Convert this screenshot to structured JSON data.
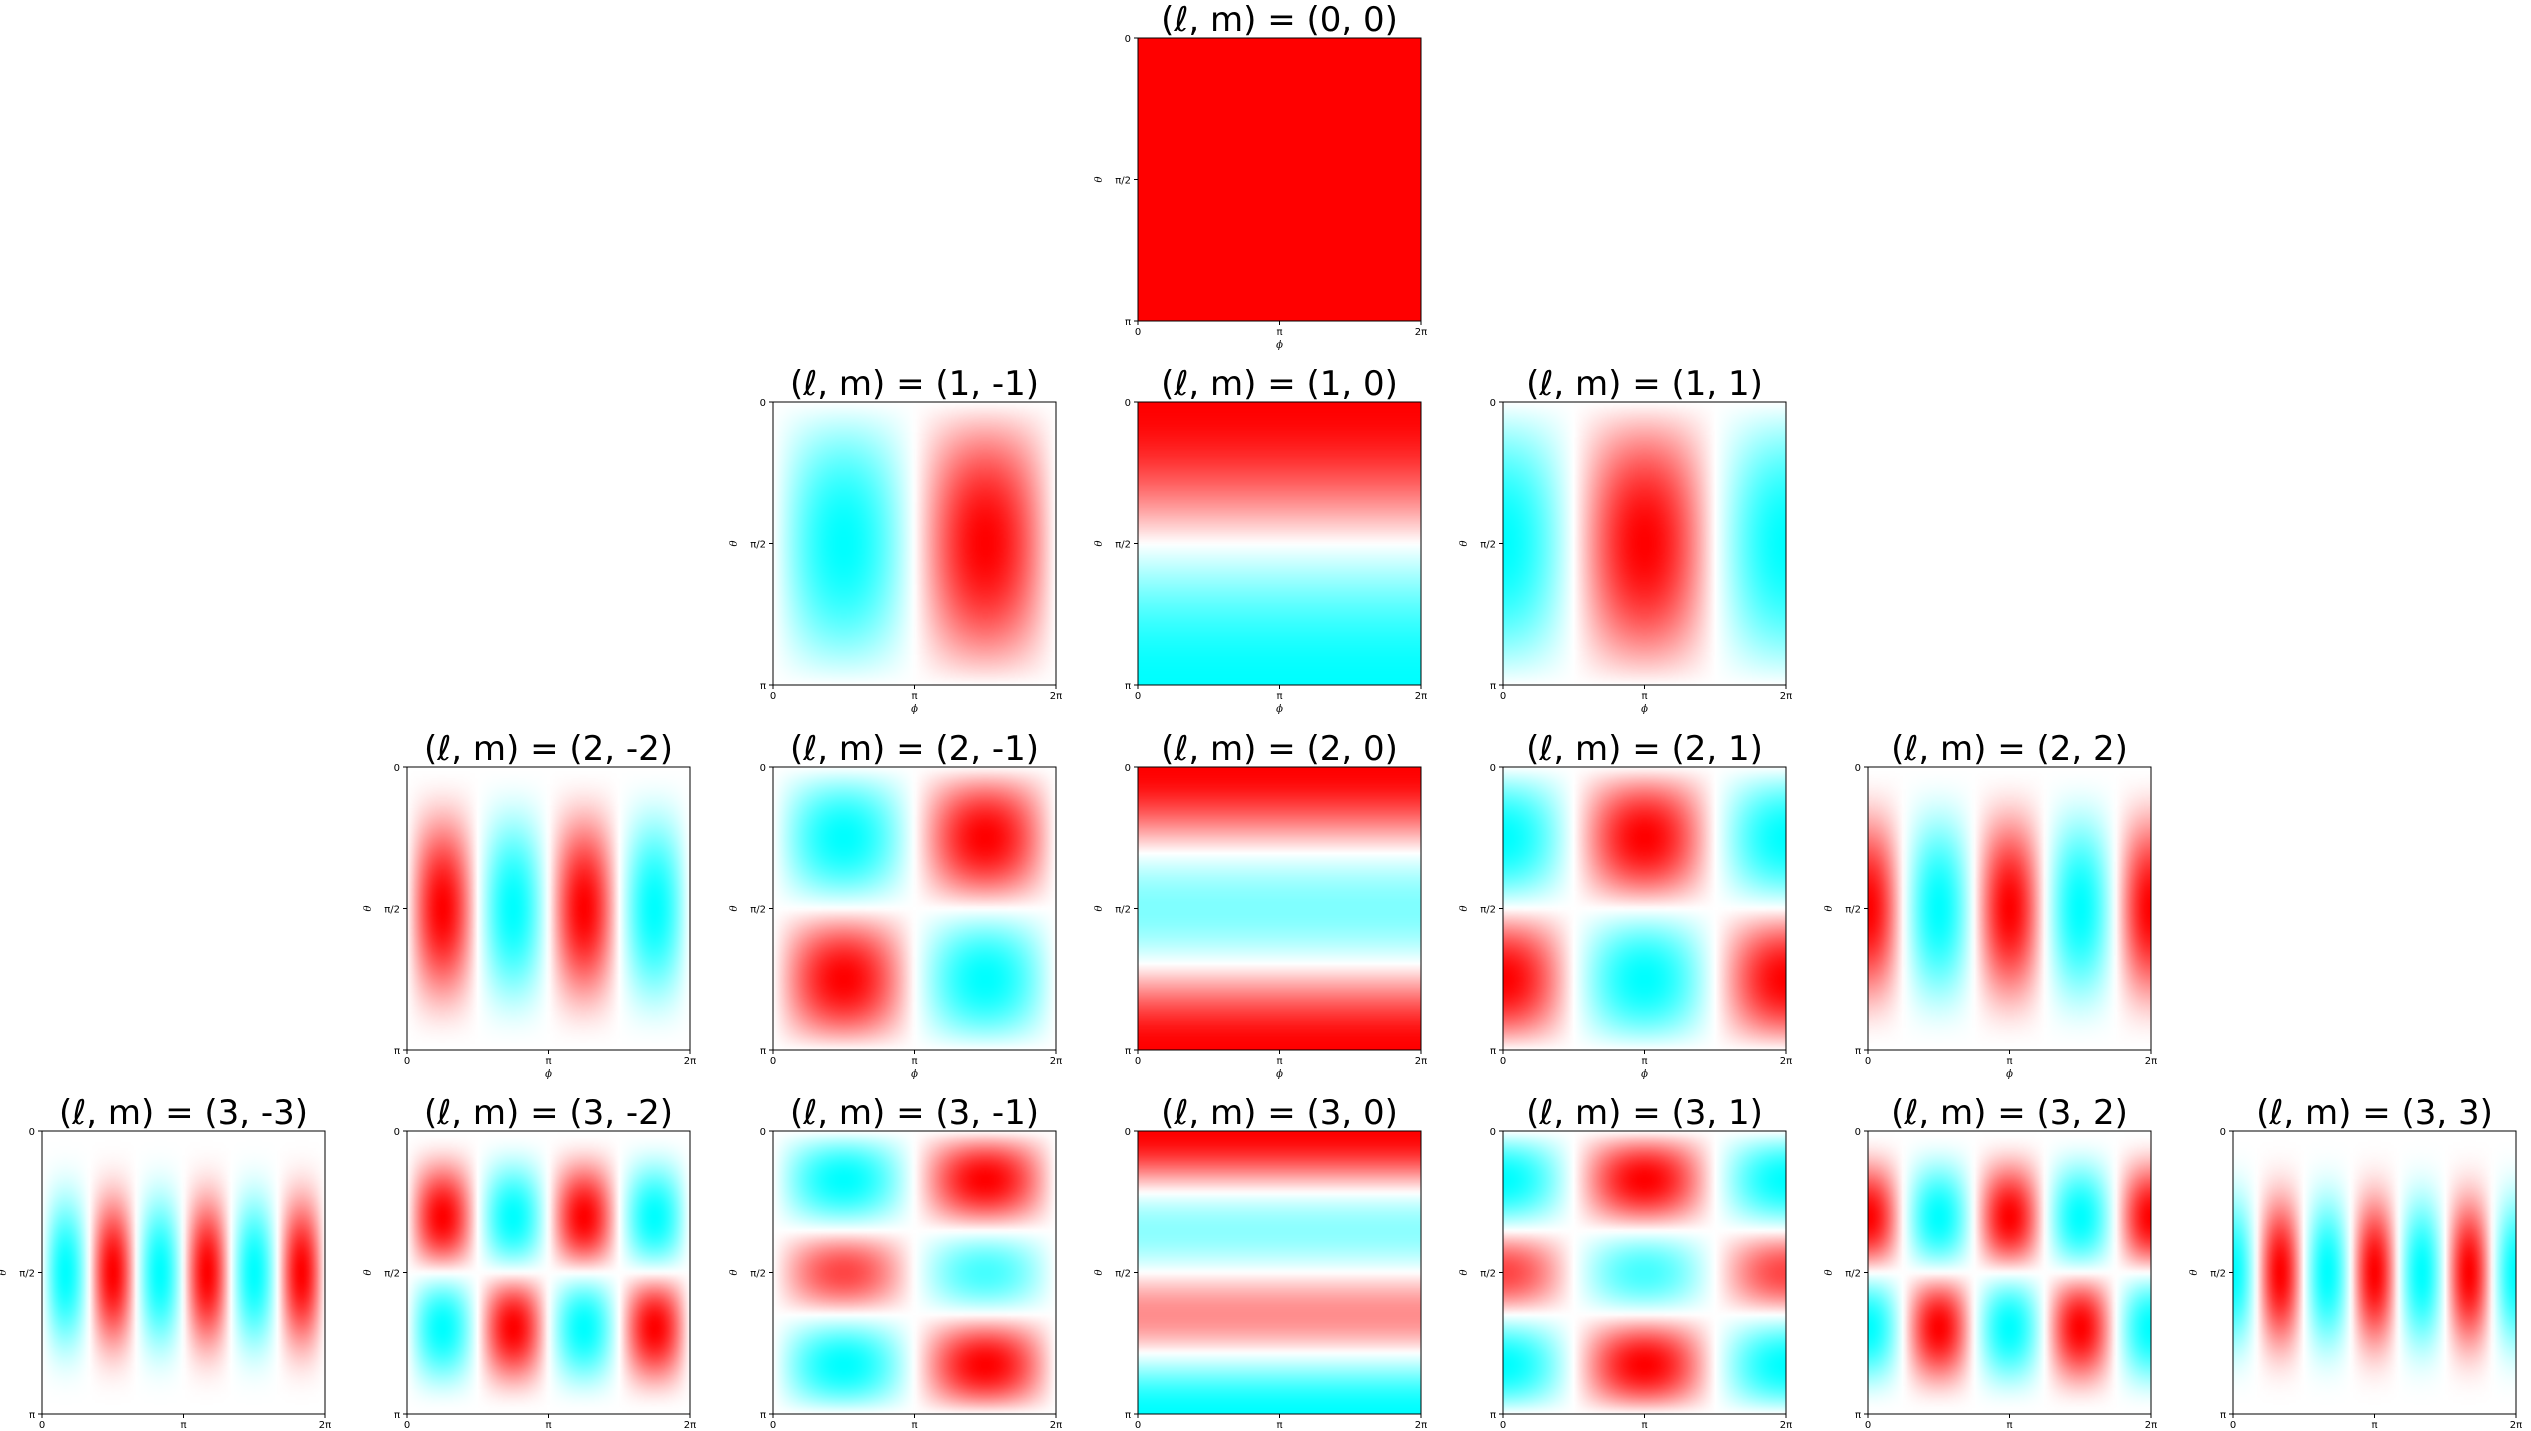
{
  "chart_data": {
    "type": "heatmap",
    "layout": "pyramid",
    "colormap": {
      "negative": "#00ffff",
      "zero": "#ffffff",
      "positive": "#ff0000"
    },
    "x_axis": {
      "label": "ϕ",
      "ticks": [
        "0",
        "π",
        "2π"
      ],
      "range": [
        0,
        6.2832
      ]
    },
    "y_axis": {
      "label": "θ",
      "ticks": [
        "0",
        "π/2",
        "π"
      ],
      "range": [
        0,
        3.1416
      ],
      "inverted": true
    },
    "panels": [
      {
        "l": 0,
        "m": 0,
        "title": "(ℓ, m) = (0, 0)"
      },
      {
        "l": 1,
        "m": -1,
        "title": "(ℓ, m) = (1, -1)"
      },
      {
        "l": 1,
        "m": 0,
        "title": "(ℓ, m) = (1, 0)"
      },
      {
        "l": 1,
        "m": 1,
        "title": "(ℓ, m) = (1, 1)"
      },
      {
        "l": 2,
        "m": -2,
        "title": "(ℓ, m) = (2, -2)"
      },
      {
        "l": 2,
        "m": -1,
        "title": "(ℓ, m) = (2, -1)"
      },
      {
        "l": 2,
        "m": 0,
        "title": "(ℓ, m) = (2, 0)"
      },
      {
        "l": 2,
        "m": 1,
        "title": "(ℓ, m) = (2, 1)"
      },
      {
        "l": 2,
        "m": 2,
        "title": "(ℓ, m) = (2, 2)"
      },
      {
        "l": 3,
        "m": -3,
        "title": "(ℓ, m) = (3, -3)"
      },
      {
        "l": 3,
        "m": -2,
        "title": "(ℓ, m) = (3, -2)"
      },
      {
        "l": 3,
        "m": -1,
        "title": "(ℓ, m) = (3, -1)"
      },
      {
        "l": 3,
        "m": 0,
        "title": "(ℓ, m) = (3, 0)"
      },
      {
        "l": 3,
        "m": 1,
        "title": "(ℓ, m) = (3, 1)"
      },
      {
        "l": 3,
        "m": 2,
        "title": "(ℓ, m) = (3, 2)"
      },
      {
        "l": 3,
        "m": 3,
        "title": "(ℓ, m) = (3, 3)"
      }
    ]
  }
}
